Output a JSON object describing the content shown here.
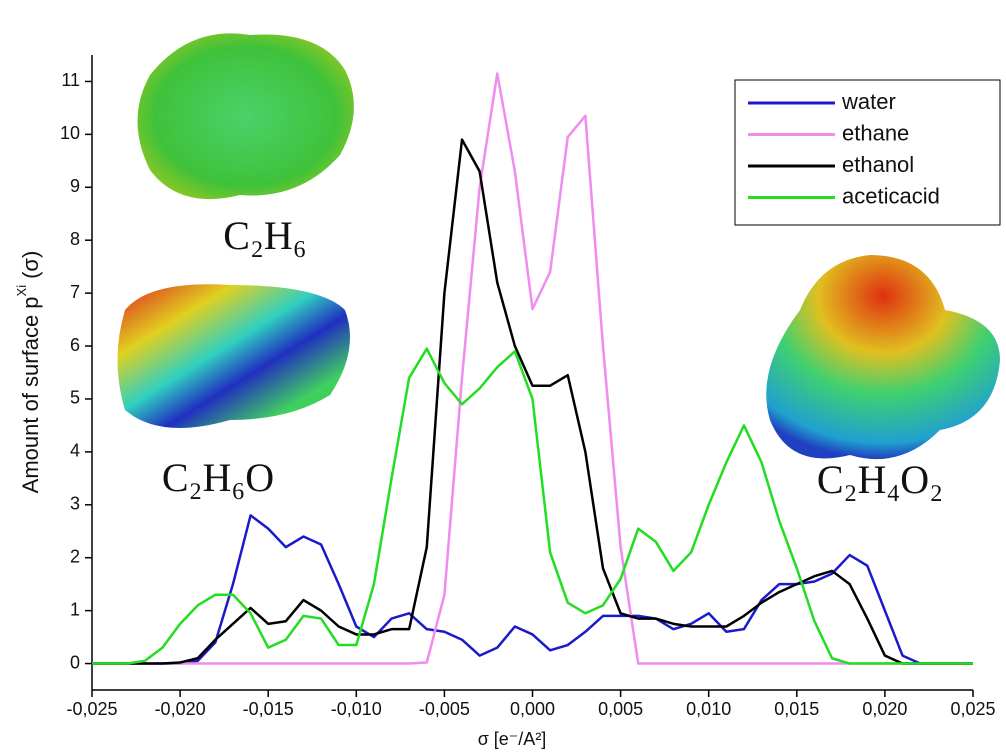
{
  "chart_data": {
    "type": "line",
    "x_label": "σ [e⁻/A²]",
    "y_label": "Amount of surface p",
    "y_label_superscript": "Xi",
    "y_label_suffix": "(σ)",
    "annotations": [
      "C₂H₆",
      "C₂H₆O",
      "C₂H₄O₂"
    ],
    "x": [
      -0.025,
      -0.024,
      -0.023,
      -0.022,
      -0.021,
      -0.02,
      -0.019,
      -0.018,
      -0.017,
      -0.016,
      -0.015,
      -0.014,
      -0.013,
      -0.012,
      -0.011,
      -0.01,
      -0.009,
      -0.008,
      -0.007,
      -0.006,
      -0.005,
      -0.004,
      -0.003,
      -0.002,
      -0.001,
      0,
      0.001,
      0.002,
      0.003,
      0.004,
      0.005,
      0.006,
      0.007,
      0.008,
      0.009,
      0.01,
      0.011,
      0.012,
      0.013,
      0.014,
      0.015,
      0.016,
      0.017,
      0.018,
      0.019,
      0.02,
      0.021,
      0.022,
      0.023,
      0.024,
      0.025
    ],
    "series": [
      {
        "name": "water",
        "color": "#1a1acc",
        "values": [
          0,
          0,
          0,
          0,
          0,
          0,
          0.05,
          0.4,
          1.5,
          2.8,
          2.55,
          2.2,
          2.4,
          2.25,
          1.5,
          0.7,
          0.5,
          0.85,
          0.95,
          0.65,
          0.6,
          0.45,
          0.15,
          0.3,
          0.7,
          0.55,
          0.25,
          0.35,
          0.6,
          0.9,
          0.9,
          0.9,
          0.85,
          0.65,
          0.75,
          0.95,
          0.6,
          0.65,
          1.2,
          1.5,
          1.5,
          1.55,
          1.7,
          2.05,
          1.85,
          1.0,
          0.15,
          0,
          0,
          0,
          0
        ]
      },
      {
        "name": "ethane",
        "color": "#f08cf0",
        "values": [
          0,
          0,
          0,
          0,
          0,
          0,
          0,
          0,
          0,
          0,
          0,
          0,
          0,
          0,
          0,
          0,
          0,
          0,
          0,
          0.02,
          1.3,
          5.4,
          9.0,
          11.15,
          9.3,
          6.7,
          7.4,
          9.95,
          10.35,
          6.0,
          2.2,
          0,
          0,
          0,
          0,
          0,
          0,
          0,
          0,
          0,
          0,
          0,
          0,
          0,
          0,
          0,
          0,
          0,
          0,
          0,
          0
        ]
      },
      {
        "name": "ethanol",
        "color": "#000000",
        "values": [
          0,
          0,
          0,
          0,
          0,
          0.02,
          0.1,
          0.45,
          0.75,
          1.05,
          0.75,
          0.8,
          1.2,
          1.0,
          0.7,
          0.55,
          0.55,
          0.65,
          0.65,
          2.2,
          7.0,
          9.9,
          9.3,
          7.2,
          6.0,
          5.25,
          5.25,
          5.45,
          4.0,
          1.8,
          0.95,
          0.85,
          0.85,
          0.75,
          0.7,
          0.7,
          0.7,
          0.9,
          1.15,
          1.35,
          1.5,
          1.65,
          1.75,
          1.5,
          0.85,
          0.15,
          0,
          0,
          0,
          0,
          0
        ]
      },
      {
        "name": "aceticacid",
        "color": "#22dd22",
        "values": [
          0,
          0,
          0,
          0.05,
          0.3,
          0.75,
          1.1,
          1.3,
          1.3,
          0.95,
          0.3,
          0.45,
          0.9,
          0.85,
          0.35,
          0.35,
          1.5,
          3.5,
          5.4,
          5.95,
          5.3,
          4.9,
          5.2,
          5.6,
          5.9,
          5.0,
          2.1,
          1.15,
          0.95,
          1.1,
          1.6,
          2.55,
          2.3,
          1.75,
          2.1,
          3.0,
          3.8,
          4.5,
          3.8,
          2.7,
          1.8,
          0.8,
          0.1,
          0,
          0,
          0,
          0,
          0,
          0,
          0,
          0
        ]
      }
    ],
    "xlim": [
      -0.025,
      0.025
    ],
    "xticks": [
      {
        "value": -0.025,
        "label": "-0,025"
      },
      {
        "value": -0.02,
        "label": "-0,020"
      },
      {
        "value": -0.015,
        "label": "-0,015"
      },
      {
        "value": -0.01,
        "label": "-0,010"
      },
      {
        "value": -0.005,
        "label": "-0,005"
      },
      {
        "value": 0,
        "label": "0,000"
      },
      {
        "value": 0.005,
        "label": "0,005"
      },
      {
        "value": 0.01,
        "label": "0,010"
      },
      {
        "value": 0.015,
        "label": "0,015"
      },
      {
        "value": 0.02,
        "label": "0,020"
      },
      {
        "value": 0.025,
        "label": "0,025"
      }
    ],
    "ylim": [
      -0.5,
      11.5
    ],
    "yticks": [
      0,
      1,
      2,
      3,
      4,
      5,
      6,
      7,
      8,
      9,
      10,
      11
    ],
    "legend": "upper right"
  }
}
